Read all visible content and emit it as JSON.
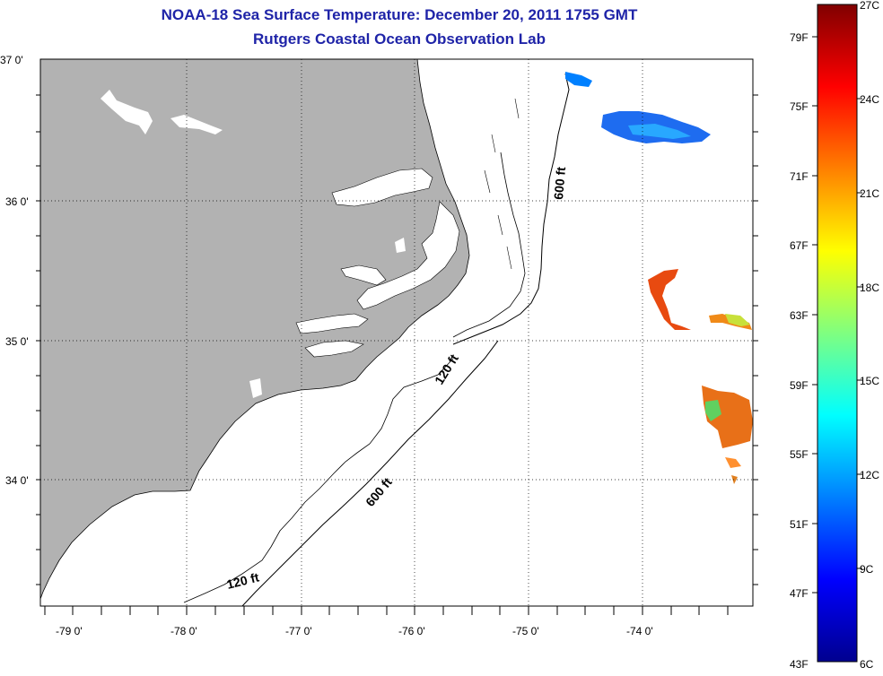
{
  "title": "NOAA-18 Sea Surface Temperature:  December 20, 2011 1755 GMT",
  "subtitle": "Rutgers Coastal Ocean Observation Lab",
  "map": {
    "lat_labels": [
      "37 0'",
      "36 0'",
      "35 0'",
      "34 0'"
    ],
    "lon_labels": [
      "-79 0'",
      "-78 0'",
      "-77 0'",
      "-76 0'",
      "-75 0'",
      "-74 0'"
    ],
    "contour_labels": [
      "600 ft",
      "120 ft",
      "600 ft",
      "120 ft"
    ],
    "land_color": "#b2b2b2",
    "ocean_color": "#ffffff"
  },
  "colorbar": {
    "fahrenheit_labels": [
      "79F",
      "75F",
      "71F",
      "67F",
      "63F",
      "59F",
      "55F",
      "51F",
      "47F",
      "43F"
    ],
    "celsius_labels": [
      "27C",
      "24C",
      "21C",
      "18C",
      "15C",
      "12C",
      "9C",
      "6C"
    ],
    "range_c": [
      6,
      27
    ],
    "colormap": "jet"
  }
}
